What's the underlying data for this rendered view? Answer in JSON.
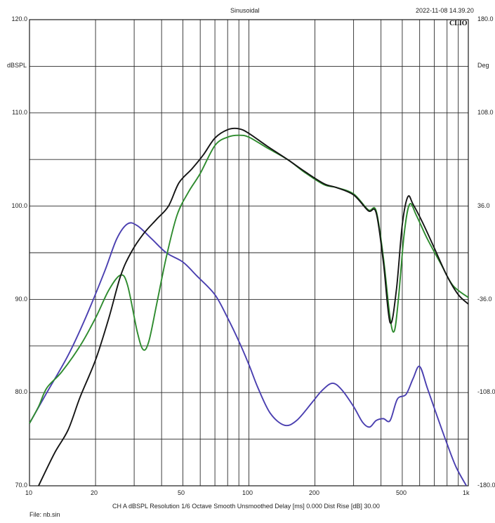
{
  "header": {
    "title": "Sinusoidal",
    "timestamp": "2022-11-08 14.39.20",
    "brand": "CLIO"
  },
  "footer": {
    "file": "File: nb.sin",
    "settings": "CH A   dBSPL   Resolution 1/6 Octave   Smooth Unsmoothed   Delay [ms] 0.000   Dist Rise [dB] 30.00"
  },
  "chart_data": {
    "type": "line",
    "title": "Sinusoidal",
    "ylabel": "dBSPL",
    "y2label": "Deg",
    "xscale": "log",
    "xlim": [
      10,
      1000
    ],
    "ylim": [
      70,
      120
    ],
    "y2lim": [
      -180,
      180
    ],
    "grid": true,
    "x_tick_labels": [
      "10",
      "20",
      "50",
      "100",
      "200",
      "500",
      "1k"
    ],
    "y_tick_labels": [
      "70.0",
      "80.0",
      "90.0",
      "100.0",
      "110.0",
      "120.0"
    ],
    "y2_tick_labels": [
      "-180.0",
      "-108.0",
      "-36.0",
      "36.0",
      "108.0",
      "180.0"
    ],
    "colors": {
      "black": "#141414",
      "green": "#2e8b2e",
      "blue": "#4a3fb0",
      "grid": "#2a2a2a"
    },
    "series": [
      {
        "color": "#141414",
        "points": [
          [
            11,
            70
          ],
          [
            13,
            73.5
          ],
          [
            15,
            76
          ],
          [
            17,
            79.5
          ],
          [
            20,
            83.5
          ],
          [
            23,
            88
          ],
          [
            26,
            92.5
          ],
          [
            29,
            95
          ],
          [
            33,
            97
          ],
          [
            38,
            98.6
          ],
          [
            43,
            100
          ],
          [
            48,
            102.5
          ],
          [
            55,
            104
          ],
          [
            62,
            105.5
          ],
          [
            70,
            107.3
          ],
          [
            80,
            108.2
          ],
          [
            90,
            108.3
          ],
          [
            100,
            107.8
          ],
          [
            120,
            106.5
          ],
          [
            150,
            105
          ],
          [
            180,
            103.7
          ],
          [
            220,
            102.4
          ],
          [
            250,
            102
          ],
          [
            300,
            101.2
          ],
          [
            350,
            99.5
          ],
          [
            380,
            99.3
          ],
          [
            410,
            94
          ],
          [
            440,
            87.5
          ],
          [
            470,
            91
          ],
          [
            500,
            98
          ],
          [
            530,
            101
          ],
          [
            560,
            100.2
          ],
          [
            620,
            98.2
          ],
          [
            700,
            95.5
          ],
          [
            800,
            92.5
          ],
          [
            900,
            90.5
          ],
          [
            1000,
            89.5
          ]
        ]
      },
      {
        "color": "#2e8b2e",
        "points": [
          [
            10,
            76.7
          ],
          [
            11,
            78.5
          ],
          [
            12,
            80.5
          ],
          [
            14,
            82.2
          ],
          [
            17,
            85
          ],
          [
            20,
            88
          ],
          [
            23,
            91
          ],
          [
            26,
            92.6
          ],
          [
            28,
            91.5
          ],
          [
            31,
            86.5
          ],
          [
            33,
            84.6
          ],
          [
            35,
            85.5
          ],
          [
            38,
            89.5
          ],
          [
            42,
            94.5
          ],
          [
            47,
            99
          ],
          [
            53,
            101.5
          ],
          [
            60,
            103.5
          ],
          [
            70,
            106.5
          ],
          [
            80,
            107.4
          ],
          [
            90,
            107.6
          ],
          [
            100,
            107.4
          ],
          [
            120,
            106.3
          ],
          [
            150,
            105
          ],
          [
            180,
            103.6
          ],
          [
            220,
            102.3
          ],
          [
            250,
            102
          ],
          [
            300,
            101.3
          ],
          [
            350,
            99.6
          ],
          [
            380,
            99.5
          ],
          [
            410,
            94.5
          ],
          [
            440,
            88
          ],
          [
            460,
            86.6
          ],
          [
            480,
            90
          ],
          [
            510,
            97
          ],
          [
            540,
            100.2
          ],
          [
            580,
            99
          ],
          [
            650,
            96.5
          ],
          [
            750,
            93.8
          ],
          [
            850,
            91.5
          ],
          [
            1000,
            90.2
          ]
        ]
      },
      {
        "color": "#4a3fb0",
        "points": [
          [
            10,
            76.7
          ],
          [
            12,
            80
          ],
          [
            15,
            84
          ],
          [
            18,
            88
          ],
          [
            22,
            93
          ],
          [
            25,
            96.5
          ],
          [
            28,
            98.1
          ],
          [
            31,
            97.9
          ],
          [
            36,
            96.5
          ],
          [
            42,
            95
          ],
          [
            50,
            94
          ],
          [
            58,
            92.5
          ],
          [
            70,
            90.5
          ],
          [
            80,
            88
          ],
          [
            90,
            85.5
          ],
          [
            100,
            83
          ],
          [
            110,
            80.5
          ],
          [
            125,
            77.8
          ],
          [
            145,
            76.5
          ],
          [
            165,
            77
          ],
          [
            195,
            79
          ],
          [
            215,
            80.2
          ],
          [
            240,
            81
          ],
          [
            265,
            80.3
          ],
          [
            300,
            78.5
          ],
          [
            330,
            76.8
          ],
          [
            355,
            76.3
          ],
          [
            380,
            77
          ],
          [
            410,
            77.2
          ],
          [
            440,
            77
          ],
          [
            475,
            79.3
          ],
          [
            520,
            79.8
          ],
          [
            560,
            81.5
          ],
          [
            600,
            82.8
          ],
          [
            650,
            80.5
          ],
          [
            720,
            77.5
          ],
          [
            800,
            74.5
          ],
          [
            880,
            72
          ],
          [
            980,
            70
          ]
        ]
      }
    ]
  }
}
